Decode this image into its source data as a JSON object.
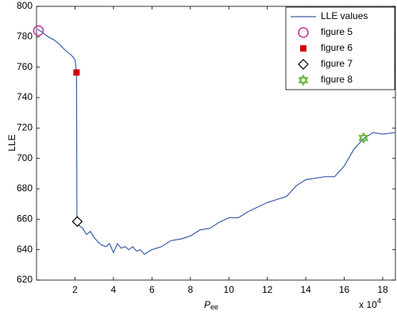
{
  "chart_data": {
    "type": "line",
    "y_label": "LLE",
    "x_label": {
      "text": "P",
      "subscript": "ee"
    },
    "x_multiplier": {
      "text": "x 10",
      "exponent": "4"
    },
    "xlim": [
      0,
      18.66
    ],
    "xticks": [
      2,
      4,
      6,
      8,
      10,
      12,
      14,
      16,
      18
    ],
    "ylim": [
      620,
      800
    ],
    "yticks": [
      620,
      640,
      660,
      680,
      700,
      720,
      740,
      760,
      780,
      800
    ],
    "legend": "upper right",
    "series": [
      {
        "name": "LLE values",
        "color": "#3a5fa8",
        "x": [
          0.05,
          0.3,
          0.6,
          0.9,
          1.2,
          1.5,
          1.8,
          2.0,
          2.08,
          2.1,
          2.2,
          2.4,
          2.6,
          2.8,
          3.0,
          3.2,
          3.4,
          3.6,
          3.8,
          4.0,
          4.2,
          4.4,
          4.6,
          4.8,
          5.0,
          5.2,
          5.4,
          5.6,
          6.0,
          6.5,
          7.0,
          7.5,
          8.0,
          8.5,
          9.0,
          9.5,
          10.0,
          10.5,
          11.0,
          11.5,
          12.0,
          12.5,
          13.0,
          13.5,
          14.0,
          14.5,
          15.0,
          15.5,
          16.0,
          16.5,
          17.0,
          17.5,
          18.0,
          18.66
        ],
        "values": [
          785,
          783,
          780,
          778,
          775,
          771,
          768,
          765,
          757,
          660,
          656,
          654,
          650,
          652,
          648,
          645,
          643,
          642,
          644,
          638,
          644,
          641,
          642,
          640,
          642,
          639,
          640,
          637,
          640,
          642,
          646,
          647,
          649,
          653,
          654,
          658,
          661,
          661,
          665,
          668,
          671,
          673,
          675,
          682,
          686,
          687,
          688,
          688,
          695,
          706,
          713,
          717,
          716,
          717
        ]
      },
      {
        "name": "figure 5",
        "color": "#c040a0",
        "marker": "circle",
        "x": [
          0.1
        ],
        "values": [
          784
        ]
      },
      {
        "name": "figure 6",
        "color": "#d00000",
        "marker": "square",
        "x": [
          2.08
        ],
        "values": [
          756.5
        ]
      },
      {
        "name": "figure 7",
        "color": "#000000",
        "marker": "diamond",
        "x": [
          2.12
        ],
        "values": [
          658.5
        ]
      },
      {
        "name": "figure 8",
        "color": "#60b030",
        "marker": "hexagram",
        "x": [
          17.0
        ],
        "values": [
          713.5
        ]
      }
    ]
  }
}
